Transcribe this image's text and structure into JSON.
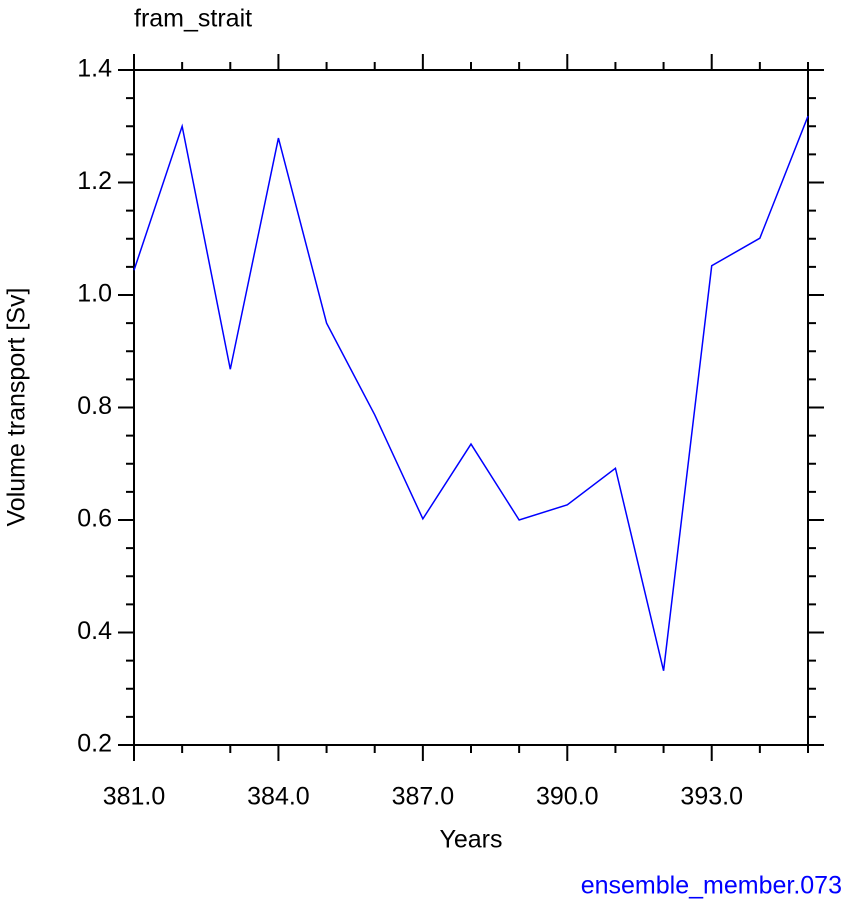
{
  "chart_data": {
    "type": "line",
    "title": "fram_strait",
    "annotation": "ensemble_member.073",
    "annotation_color": "#0000ff",
    "xlabel": "Years",
    "ylabel": "Volume transport [Sv]",
    "x": [
      381,
      382,
      383,
      384,
      385,
      386,
      387,
      388,
      389,
      390,
      391,
      392,
      393,
      394,
      395
    ],
    "series": [
      {
        "color": "#0000ff",
        "values": [
          1.044,
          1.3,
          0.868,
          1.279,
          0.95,
          0.787,
          0.602,
          0.735,
          0.6,
          0.627,
          0.692,
          0.332,
          1.052,
          1.101,
          1.318
        ]
      }
    ],
    "xlim": [
      381,
      395
    ],
    "ylim": [
      0.2,
      1.4
    ],
    "xticks": [
      {
        "value": 381,
        "label": "381.0"
      },
      {
        "value": 384,
        "label": "384.0"
      },
      {
        "value": 387,
        "label": "387.0"
      },
      {
        "value": 390,
        "label": "390.0"
      },
      {
        "value": 393,
        "label": "393.0"
      }
    ],
    "xminorticks": [
      382,
      383,
      385,
      386,
      388,
      389,
      391,
      392,
      394,
      395
    ],
    "yticks": [
      0.2,
      0.4,
      0.6,
      0.8,
      {
        "value": 1,
        "label": "1.0"
      },
      1.2,
      1.4
    ],
    "yminorticks": [
      0.25,
      0.3,
      0.35,
      0.45,
      0.5,
      0.55,
      0.65,
      0.7,
      0.75,
      0.85,
      0.9,
      0.95,
      1.05,
      1.1,
      1.15,
      1.25,
      1.3,
      1.35
    ],
    "grid": false
  }
}
